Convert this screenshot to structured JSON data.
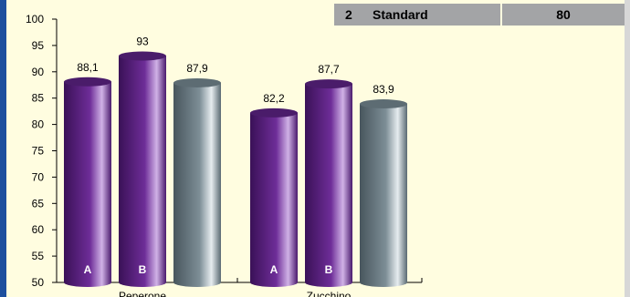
{
  "legend": {
    "number": "2",
    "label": "Standard",
    "value": "80"
  },
  "chart_data": {
    "type": "bar",
    "style": "3d-cylinder",
    "categories": [
      "Peperone",
      "Zucchino"
    ],
    "ylim": [
      50,
      100
    ],
    "yticks": [
      50,
      55,
      60,
      65,
      70,
      75,
      80,
      85,
      90,
      95,
      100
    ],
    "groups": [
      {
        "category": "Peperone",
        "bars": [
          {
            "label": "A",
            "value": 88.1,
            "value_text": "88,1",
            "color": "#5b2380"
          },
          {
            "label": "B",
            "value": 93,
            "value_text": "93",
            "color": "#5b2380"
          },
          {
            "label": "",
            "value": 87.9,
            "value_text": "87,9",
            "color": "#6f8088"
          }
        ]
      },
      {
        "category": "Zucchino",
        "bars": [
          {
            "label": "A",
            "value": 82.2,
            "value_text": "82,2",
            "color": "#5b2380"
          },
          {
            "label": "B",
            "value": 87.7,
            "value_text": "87,7",
            "color": "#5b2380"
          },
          {
            "label": "",
            "value": 83.9,
            "value_text": "83,9",
            "color": "#6f8088"
          }
        ]
      }
    ],
    "grid": false,
    "title": "",
    "xlabel": "",
    "ylabel": ""
  }
}
